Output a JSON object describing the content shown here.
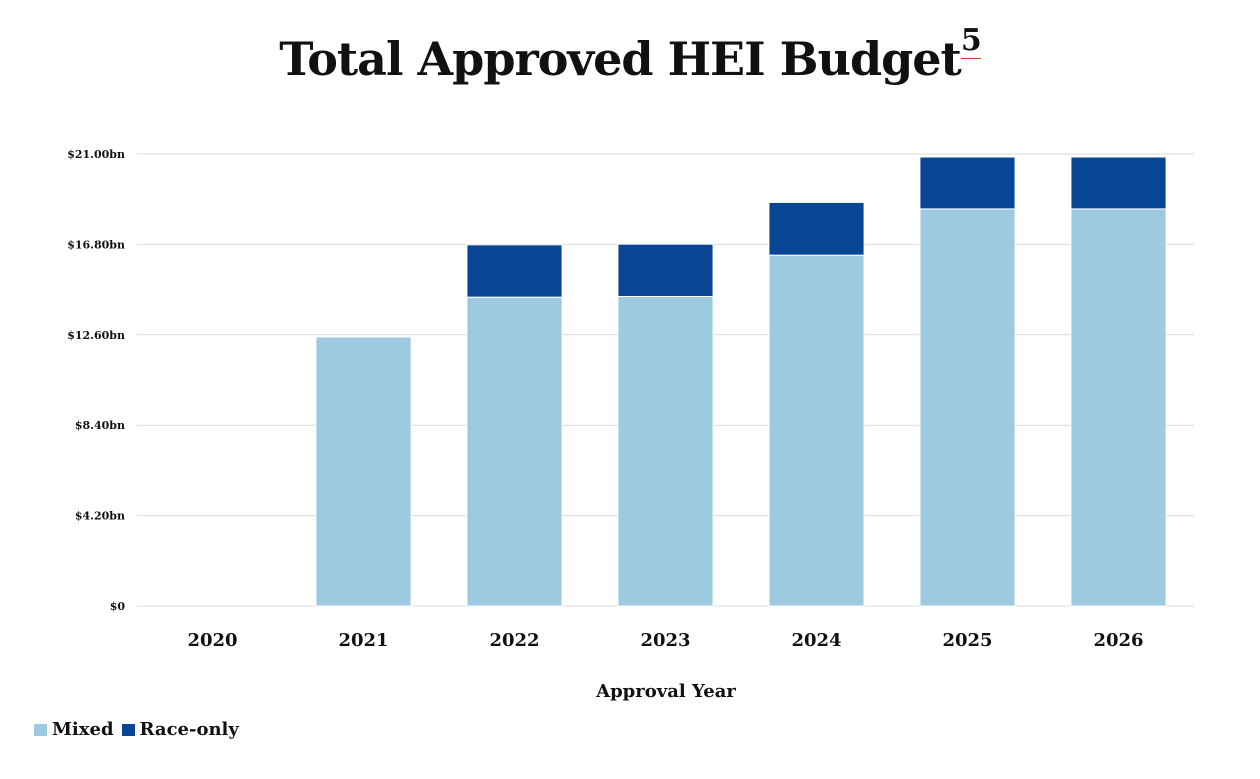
{
  "chart_data": {
    "type": "bar",
    "stacked": true,
    "title": "Total Approved HEI Budget",
    "title_footnote": "5",
    "xlabel": "Approval Year",
    "ylabel": "",
    "categories": [
      "2020",
      "2021",
      "2022",
      "2023",
      "2024",
      "2025",
      "2026"
    ],
    "y_ticks": [
      "$0",
      "$4.20bn",
      "$8.40bn",
      "$12.60bn",
      "$16.80bn",
      "$21.00bn"
    ],
    "ylim": [
      0,
      21
    ],
    "grid": true,
    "legend_position": "bottom-left",
    "series": [
      {
        "name": "Mixed",
        "color": "#9ecae1",
        "values": [
          0,
          12.5,
          14.35,
          14.38,
          16.3,
          18.45,
          18.45
        ]
      },
      {
        "name": "Race-only",
        "color": "#084594",
        "values": [
          0,
          0,
          2.43,
          2.43,
          2.45,
          2.41,
          2.41
        ]
      }
    ]
  }
}
